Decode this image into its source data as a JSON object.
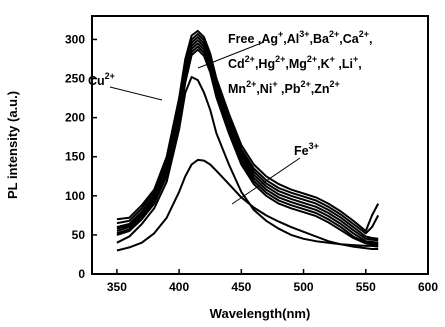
{
  "chart_data": {
    "type": "line",
    "xlabel": "Wavelength(nm)",
    "ylabel": "PL intensity (a.u.)",
    "xlim": [
      330,
      600
    ],
    "ylim": [
      0,
      330
    ],
    "xticks": [
      350,
      400,
      450,
      500,
      550,
      600
    ],
    "yticks": [
      0,
      50,
      100,
      150,
      200,
      250,
      300
    ],
    "grid": false,
    "legend": "none",
    "annotations": [
      {
        "lines": [
          [
            "Free ,Ag",
            "+",
            ",Al",
            "3+",
            ",Ba",
            "2+",
            ",Ca",
            "2+",
            ","
          ],
          [
            "Cd",
            "2+",
            ",Hg",
            "2+",
            ",Mg",
            "2+",
            ",K",
            "+",
            " ,Li",
            "+",
            ","
          ],
          [
            "Mn",
            "2+",
            ",Ni",
            "+",
            " ,Pb",
            "2+",
            ",Zn",
            "2+",
            ""
          ]
        ]
      },
      {
        "lines": [
          [
            "Cu",
            "2+",
            ""
          ]
        ]
      },
      {
        "lines": [
          [
            "Fe",
            "3+",
            ""
          ]
        ]
      }
    ],
    "series": [
      {
        "x": [
          350,
          360,
          370,
          380,
          390,
          400,
          405,
          410,
          415,
          420,
          425,
          430,
          440,
          450,
          460,
          470,
          480,
          490,
          500,
          510,
          520,
          530,
          540,
          550,
          555,
          560
        ],
        "values": [
          70,
          72,
          88,
          108,
          150,
          225,
          275,
          305,
          311,
          303,
          282,
          250,
          205,
          165,
          140,
          125,
          115,
          108,
          103,
          98,
          90,
          80,
          68,
          55,
          75,
          90
        ]
      },
      {
        "x": [
          350,
          360,
          370,
          380,
          390,
          400,
          405,
          410,
          415,
          420,
          425,
          430,
          440,
          450,
          460,
          470,
          480,
          490,
          500,
          510,
          520,
          530,
          540,
          550,
          555,
          560
        ],
        "values": [
          65,
          68,
          84,
          104,
          145,
          220,
          270,
          300,
          307,
          299,
          278,
          246,
          200,
          160,
          135,
          120,
          110,
          104,
          99,
          94,
          86,
          76,
          64,
          52,
          60,
          75
        ]
      },
      {
        "x": [
          350,
          360,
          370,
          380,
          390,
          400,
          405,
          410,
          415,
          420,
          425,
          430,
          440,
          450,
          460,
          470,
          480,
          490,
          500,
          510,
          520,
          530,
          540,
          550,
          555,
          560
        ],
        "values": [
          60,
          64,
          80,
          100,
          140,
          215,
          265,
          296,
          303,
          295,
          274,
          242,
          196,
          156,
          131,
          116,
          106,
          100,
          95,
          90,
          82,
          72,
          60,
          48,
          46,
          45
        ]
      },
      {
        "x": [
          350,
          360,
          370,
          380,
          390,
          400,
          405,
          410,
          415,
          420,
          425,
          430,
          440,
          450,
          460,
          470,
          480,
          490,
          500,
          510,
          520,
          530,
          540,
          550,
          555,
          560
        ],
        "values": [
          58,
          62,
          77,
          97,
          136,
          210,
          260,
          292,
          299,
          291,
          270,
          238,
          192,
          152,
          127,
          112,
          102,
          96,
          91,
          86,
          78,
          68,
          56,
          45,
          44,
          43
        ]
      },
      {
        "x": [
          350,
          360,
          370,
          380,
          390,
          400,
          405,
          410,
          415,
          420,
          425,
          430,
          440,
          450,
          460,
          470,
          480,
          490,
          500,
          510,
          520,
          530,
          540,
          550,
          555,
          560
        ],
        "values": [
          55,
          60,
          75,
          94,
          132,
          205,
          255,
          288,
          295,
          287,
          266,
          234,
          188,
          148,
          123,
          108,
          98,
          92,
          87,
          82,
          74,
          64,
          52,
          42,
          41,
          40
        ]
      },
      {
        "x": [
          350,
          360,
          370,
          380,
          390,
          400,
          405,
          410,
          415,
          420,
          425,
          430,
          440,
          450,
          460,
          470,
          480,
          490,
          500,
          510,
          520,
          530,
          540,
          550,
          555,
          560
        ],
        "values": [
          52,
          57,
          72,
          92,
          128,
          200,
          250,
          284,
          291,
          283,
          262,
          230,
          184,
          144,
          119,
          104,
          94,
          88,
          83,
          78,
          70,
          60,
          48,
          40,
          39,
          38
        ]
      },
      {
        "x": [
          350,
          360,
          370,
          380,
          390,
          400,
          405,
          410,
          415,
          420,
          425,
          430,
          440,
          450,
          460,
          470,
          480,
          490,
          500,
          510,
          520,
          530,
          540,
          550,
          555,
          560
        ],
        "values": [
          50,
          55,
          70,
          90,
          125,
          195,
          245,
          280,
          287,
          279,
          258,
          226,
          180,
          140,
          115,
          100,
          90,
          84,
          79,
          74,
          66,
          56,
          46,
          39,
          38,
          37
        ]
      },
      {
        "x": [
          350,
          360,
          370,
          380,
          390,
          400,
          405,
          410,
          415,
          420,
          425,
          430,
          440,
          450,
          460,
          470,
          480,
          490,
          500,
          510,
          520,
          530,
          540,
          550,
          555,
          560
        ],
        "values": [
          40,
          48,
          64,
          84,
          118,
          185,
          232,
          252,
          248,
          232,
          210,
          180,
          140,
          105,
          82,
          68,
          58,
          50,
          45,
          42,
          40,
          38,
          37,
          36,
          36,
          35
        ]
      },
      {
        "x": [
          350,
          360,
          370,
          380,
          390,
          400,
          405,
          410,
          415,
          420,
          425,
          430,
          440,
          450,
          460,
          470,
          480,
          490,
          500,
          510,
          520,
          530,
          540,
          550,
          555,
          560
        ],
        "values": [
          30,
          34,
          40,
          52,
          72,
          105,
          125,
          140,
          146,
          145,
          140,
          132,
          115,
          98,
          85,
          75,
          67,
          60,
          54,
          48,
          42,
          38,
          35,
          33,
          32,
          32
        ]
      }
    ]
  }
}
